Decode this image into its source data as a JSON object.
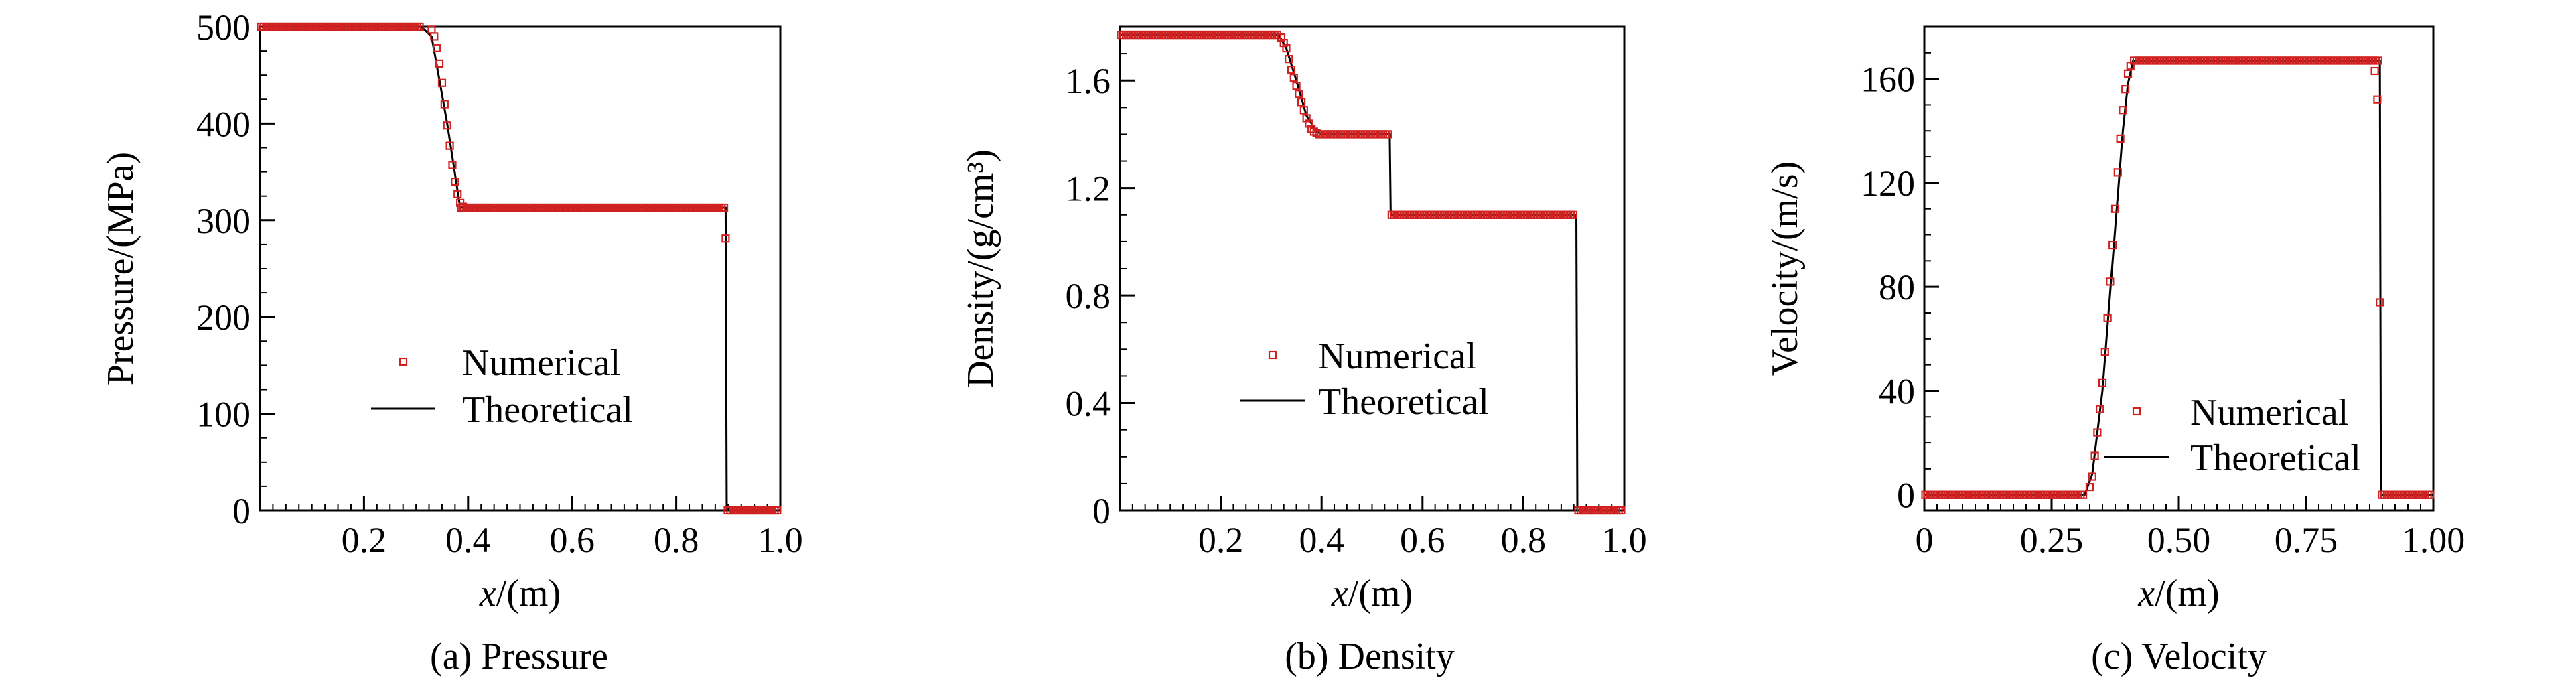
{
  "colors": {
    "numerical": "#d02020",
    "theoretical": "#000000",
    "axes": "#000000",
    "background": "#ffffff"
  },
  "chart_data": [
    {
      "id": "a",
      "type": "line",
      "caption": "(a) Pressure",
      "ylabel": "Pressure/(MPa)",
      "xlabel_var": "x",
      "xlabel_unit": "/(m)",
      "xlim": [
        0,
        1.0
      ],
      "ylim": [
        0,
        500
      ],
      "xticks": [
        0.2,
        0.4,
        0.6,
        0.8,
        1.0
      ],
      "xtick_labels": [
        "0.2",
        "0.4",
        "0.6",
        "0.8",
        "1.0"
      ],
      "yticks": [
        0,
        100,
        200,
        300,
        400,
        500
      ],
      "ytick_labels": [
        "0",
        "100",
        "200",
        "300",
        "400",
        "500"
      ],
      "legend": {
        "placement": "center",
        "entries": [
          "Numerical",
          "Theoretical"
        ]
      },
      "series": [
        {
          "name": "Theoretical",
          "style": "line",
          "x": [
            0,
            0.31,
            0.33,
            0.36,
            0.385,
            0.895,
            0.897,
            1.0
          ],
          "y": [
            500,
            500,
            490,
            400,
            313,
            313,
            0,
            0
          ]
        },
        {
          "name": "Numerical",
          "style": "markers",
          "x": [
            0.33,
            0.335,
            0.34,
            0.345,
            0.35,
            0.355,
            0.36,
            0.365,
            0.37,
            0.375,
            0.38,
            0.385,
            0.39,
            0.895
          ],
          "y": [
            497,
            490,
            478,
            462,
            442,
            420,
            398,
            377,
            357,
            340,
            327,
            318,
            314,
            281
          ]
        }
      ]
    },
    {
      "id": "b",
      "type": "line",
      "caption": "(b) Density",
      "ylabel": "Density/(g/cm³)",
      "xlabel_var": "x",
      "xlabel_unit": "/(m)",
      "xlim": [
        0,
        1.0
      ],
      "ylim": [
        0,
        1.8
      ],
      "xticks": [
        0.2,
        0.4,
        0.6,
        0.8,
        1.0
      ],
      "xtick_labels": [
        "0.2",
        "0.4",
        "0.6",
        "0.8",
        "1.0"
      ],
      "yticks": [
        0,
        0.4,
        0.8,
        1.2,
        1.6
      ],
      "ytick_labels": [
        "0",
        "0.4",
        "0.8",
        "1.2",
        "1.6"
      ],
      "legend": {
        "placement": "center",
        "entries": [
          "Numerical",
          "Theoretical"
        ]
      },
      "series": [
        {
          "name": "Theoretical",
          "style": "line",
          "x": [
            0,
            0.315,
            0.33,
            0.35,
            0.37,
            0.39,
            0.4,
            0.535,
            0.537,
            0.905,
            0.907,
            1.0
          ],
          "y": [
            1.77,
            1.77,
            1.72,
            1.6,
            1.47,
            1.41,
            1.4,
            1.4,
            1.1,
            1.1,
            0,
            0
          ]
        },
        {
          "name": "Numerical",
          "style": "markers",
          "x": [
            0.32,
            0.325,
            0.33,
            0.335,
            0.34,
            0.345,
            0.35,
            0.355,
            0.36,
            0.365,
            0.37,
            0.375,
            0.38,
            0.385,
            0.39,
            0.395
          ],
          "y": [
            1.76,
            1.74,
            1.72,
            1.68,
            1.64,
            1.61,
            1.58,
            1.55,
            1.52,
            1.49,
            1.46,
            1.44,
            1.42,
            1.41,
            1.405,
            1.4
          ]
        }
      ]
    },
    {
      "id": "c",
      "type": "line",
      "caption": "(c) Velocity",
      "ylabel": "Velocity/(m/s)",
      "xlabel_var": "x",
      "xlabel_unit": "/(m)",
      "xlim": [
        0,
        1.0
      ],
      "ylim": [
        -6,
        180
      ],
      "xticks": [
        0,
        0.25,
        0.5,
        0.75,
        1.0
      ],
      "xtick_labels": [
        "0",
        "0.25",
        "0.50",
        "0.75",
        "1.00"
      ],
      "yticks": [
        0,
        40,
        80,
        120,
        160
      ],
      "ytick_labels": [
        "0",
        "40",
        "80",
        "120",
        "160"
      ],
      "legend": {
        "placement": "bottom-center",
        "entries": [
          "Numerical",
          "Theoretical"
        ]
      },
      "series": [
        {
          "name": "Theoretical",
          "style": "line",
          "x": [
            0,
            0.315,
            0.33,
            0.35,
            0.37,
            0.39,
            0.4,
            0.41,
            0.895,
            0.897,
            1.0
          ],
          "y": [
            0,
            0,
            8,
            40,
            90,
            140,
            158,
            167,
            167,
            0,
            0
          ]
        },
        {
          "name": "Numerical",
          "style": "markers",
          "x": [
            0.325,
            0.33,
            0.335,
            0.34,
            0.345,
            0.35,
            0.355,
            0.36,
            0.365,
            0.37,
            0.375,
            0.38,
            0.385,
            0.39,
            0.395,
            0.4,
            0.405,
            0.885,
            0.89,
            0.895
          ],
          "y": [
            3,
            7,
            15,
            24,
            33,
            43,
            55,
            68,
            82,
            96,
            110,
            124,
            137,
            148,
            156,
            162,
            165,
            163,
            152,
            74
          ]
        }
      ]
    }
  ]
}
